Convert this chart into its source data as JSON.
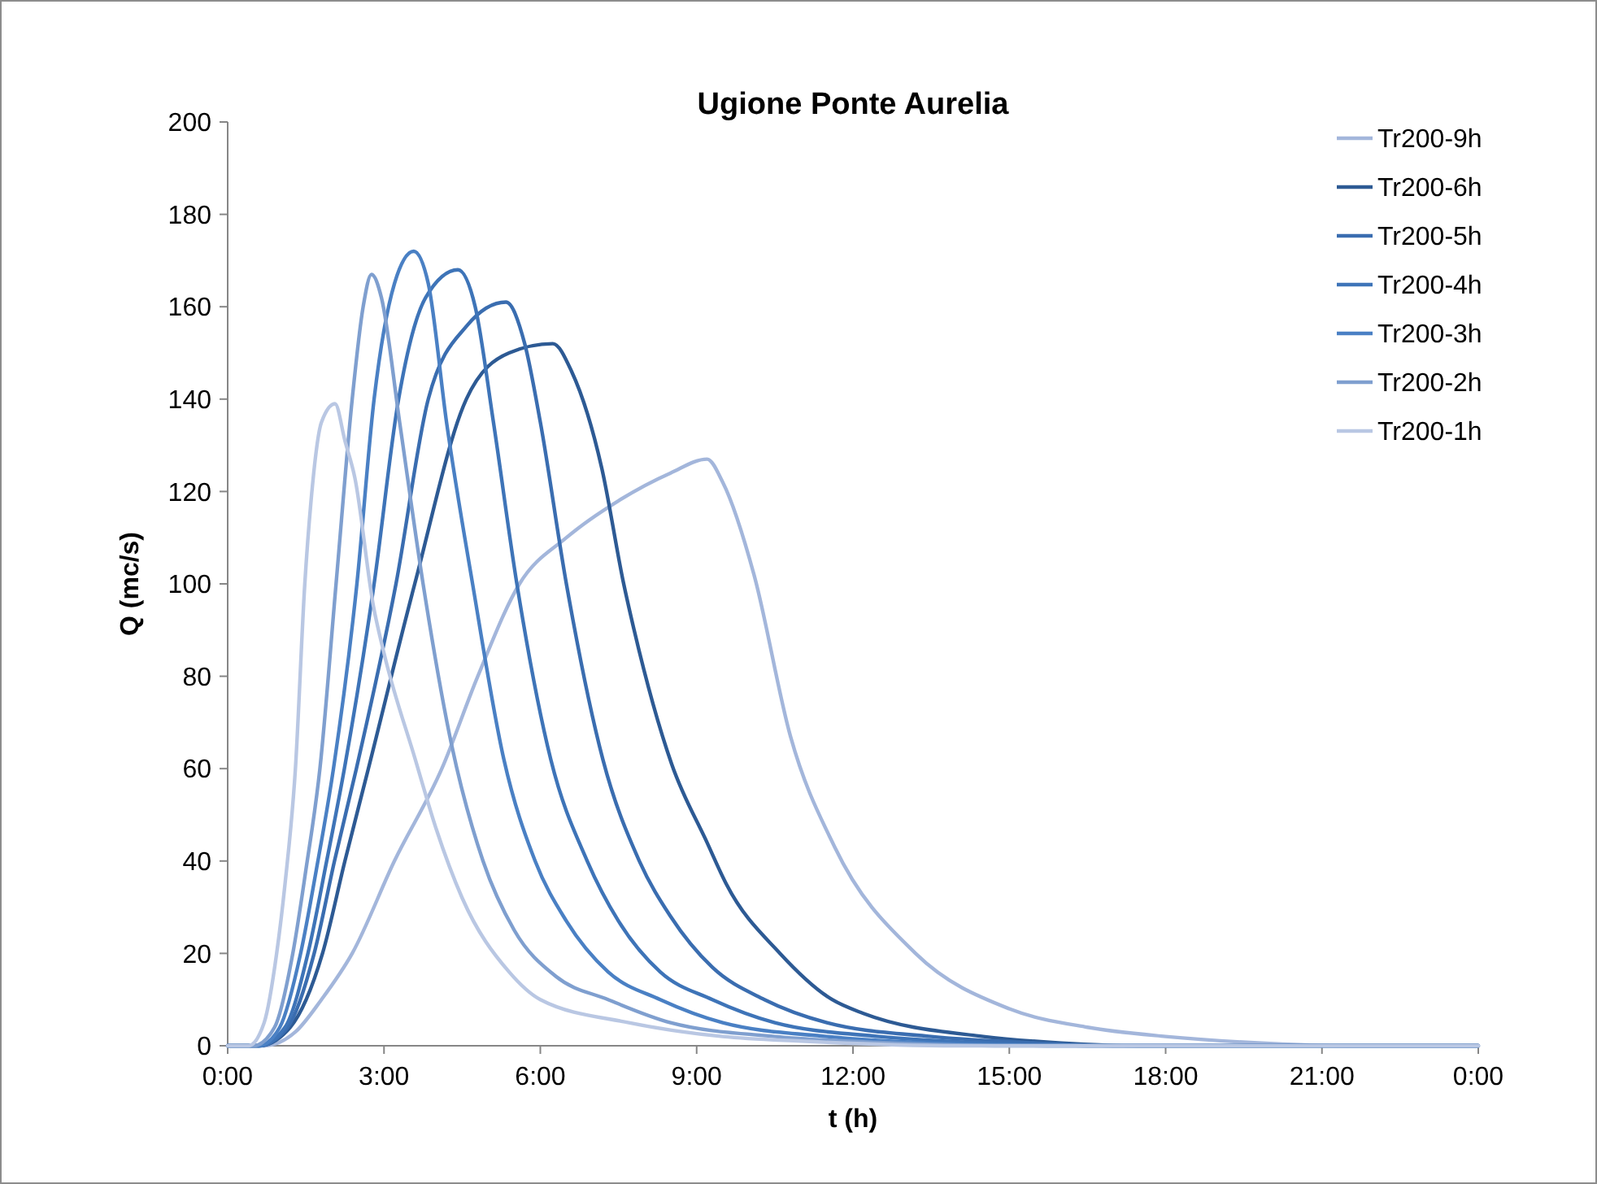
{
  "chart_data": {
    "type": "line",
    "title": "Ugione Ponte Aurelia",
    "xlabel": "t (h)",
    "ylabel": "Q (mc/s)",
    "xlim": [
      0,
      24
    ],
    "xticks": [
      {
        "value": 0,
        "label": "0:00"
      },
      {
        "value": 3,
        "label": "3:00"
      },
      {
        "value": 6,
        "label": "6:00"
      },
      {
        "value": 9,
        "label": "9:00"
      },
      {
        "value": 12,
        "label": "12:00"
      },
      {
        "value": 15,
        "label": "15:00"
      },
      {
        "value": 18,
        "label": "18:00"
      },
      {
        "value": 21,
        "label": "21:00"
      },
      {
        "value": 24,
        "label": "0:00"
      }
    ],
    "ylim": [
      0,
      200
    ],
    "yticks": [
      0,
      20,
      40,
      60,
      80,
      100,
      120,
      140,
      160,
      180,
      200
    ],
    "grid": false,
    "legend": "top right",
    "marker": "none",
    "line_style": "solid",
    "series": [
      {
        "name": "Tr200-9h",
        "color": "#a3b6db",
        "x": [
          0,
          0.7,
          1.3,
          1.8,
          2.39,
          3.2,
          4.11,
          4.8,
          5.6,
          6.5,
          7.5,
          8.5,
          9.2,
          9.5,
          10.1,
          10.8,
          11.65,
          13.2,
          15,
          16.5,
          18,
          20,
          21.5,
          24
        ],
        "values": [
          0,
          0,
          3,
          10,
          20,
          40,
          60,
          80,
          100,
          110,
          118,
          124,
          127,
          122,
          102,
          67,
          43,
          20,
          8,
          4,
          2,
          0.5,
          0,
          0
        ]
      },
      {
        "name": "Tr200-6h",
        "color": "#2d5a94",
        "x": [
          0,
          0.6,
          1.2,
          1.82,
          2.25,
          2.7,
          3.59,
          4.58,
          5.4,
          6.24,
          6.6,
          7.18,
          7.6,
          7.8,
          8.52,
          9.2,
          9.57,
          10.6,
          11.6,
          12.2,
          14.5,
          16,
          17.5,
          24
        ],
        "values": [
          0,
          0,
          4,
          20,
          40,
          60,
          100,
          140,
          150,
          152,
          146,
          125,
          100,
          90,
          61,
          44,
          35,
          20,
          10,
          7,
          2,
          0.6,
          0,
          0
        ]
      },
      {
        "name": "Tr200-5h",
        "color": "#3a6db0",
        "x": [
          0,
          0.6,
          1.15,
          1.66,
          2.05,
          2.47,
          3.23,
          3.85,
          4.6,
          5.34,
          5.7,
          6,
          6.5,
          7.2,
          7.9,
          8.5,
          9.3,
          10.3,
          11.5,
          13.5,
          15.5,
          17,
          24
        ],
        "values": [
          0,
          0,
          4,
          20,
          40,
          60,
          100,
          140,
          156,
          161,
          152,
          135,
          100,
          62,
          40,
          28,
          17,
          10,
          5,
          2,
          0.6,
          0,
          0
        ]
      },
      {
        "name": "Tr200-4h",
        "color": "#3e74b8",
        "x": [
          0,
          0.6,
          1.1,
          1.54,
          1.9,
          2.24,
          2.81,
          3.28,
          3.8,
          4.42,
          4.75,
          5.1,
          5.55,
          6.2,
          6.9,
          7.5,
          8.3,
          9.3,
          10.5,
          12.5,
          14.5,
          16.5,
          24
        ],
        "values": [
          0,
          0,
          4,
          20,
          40,
          60,
          100,
          140,
          162,
          168,
          160,
          135,
          100,
          62,
          40,
          27,
          16,
          10,
          5,
          2,
          0.6,
          0,
          0
        ]
      },
      {
        "name": "Tr200-3h",
        "color": "#4a80c4",
        "x": [
          0,
          0.6,
          1,
          1.4,
          1.7,
          2.03,
          2.48,
          2.81,
          3.2,
          3.57,
          3.85,
          4.2,
          4.7,
          5.3,
          5.9,
          6.5,
          7.3,
          8.3,
          9.5,
          11.5,
          13.5,
          16,
          24
        ],
        "values": [
          0,
          0,
          4,
          20,
          38,
          60,
          100,
          140,
          165,
          172,
          165,
          135,
          100,
          62,
          40,
          27,
          16,
          10,
          5,
          2,
          0.6,
          0,
          0
        ]
      },
      {
        "name": "Tr200-2h",
        "color": "#7f9fcf",
        "x": [
          0,
          0.5,
          0.9,
          1.25,
          1.5,
          1.77,
          2.08,
          2.39,
          2.6,
          2.76,
          2.95,
          3.3,
          3.75,
          4.3,
          4.9,
          5.5,
          6.3,
          7.3,
          8.5,
          10.5,
          12.5,
          15,
          24
        ],
        "values": [
          0,
          0,
          4,
          20,
          38,
          60,
          100,
          140,
          160,
          167,
          162,
          135,
          100,
          65,
          40,
          25,
          15,
          10,
          5,
          2,
          0.7,
          0,
          0
        ]
      },
      {
        "name": "Tr200-1h",
        "color": "#b9c7e3",
        "x": [
          0,
          0.4,
          0.7,
          0.94,
          1.1,
          1.3,
          1.48,
          1.6,
          1.8,
          2.06,
          2.25,
          2.44,
          2.8,
          3,
          3.6,
          4,
          4.5,
          5.4,
          6,
          7.7,
          9.5,
          11,
          14,
          24
        ],
        "values": [
          0,
          0,
          5,
          20,
          35,
          60,
          100,
          118,
          135,
          139,
          131,
          123,
          95,
          85,
          62,
          47,
          32,
          16,
          10,
          5,
          2,
          1,
          0,
          0
        ]
      }
    ]
  }
}
